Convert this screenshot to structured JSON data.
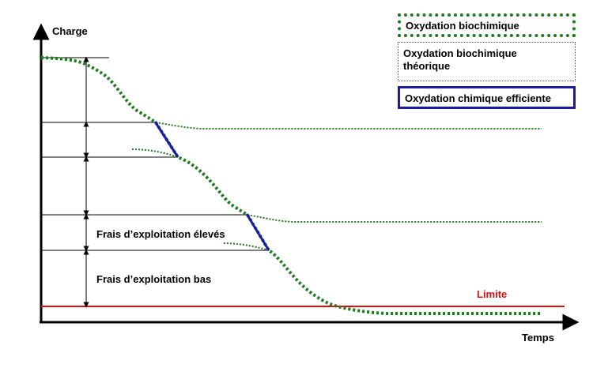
{
  "axes": {
    "y_label": "Charge",
    "x_label": "Temps"
  },
  "annotations": {
    "high_costs": "Frais d’exploitation élevés",
    "low_costs": "Frais d’exploitation bas",
    "limit": "Limite"
  },
  "legend": {
    "biochemical": "Oxydation biochimique",
    "theoretical_line1": "Oxydation biochimique",
    "theoretical_line2": "théorique",
    "chemical": "Oxydation chimique efficiente"
  },
  "colors": {
    "biochemical": "#1f7a1f",
    "chemical": "#1a1aa8",
    "limit": "#e01010",
    "axis": "#000000"
  }
}
